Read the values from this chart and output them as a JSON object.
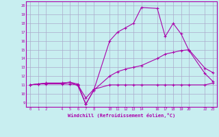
{
  "xlabel": "Windchill (Refroidissement éolien,°C)",
  "bg_color": "#c8eef0",
  "line_color": "#aa00aa",
  "grid_color": "#aaaacc",
  "xlim": [
    -0.5,
    23.5
  ],
  "ylim": [
    8.5,
    20.5
  ],
  "yticks": [
    9,
    10,
    11,
    12,
    13,
    14,
    15,
    16,
    17,
    18,
    19,
    20
  ],
  "xticks": [
    0,
    1,
    2,
    4,
    5,
    6,
    7,
    8,
    10,
    11,
    12,
    13,
    14,
    16,
    17,
    18,
    19,
    20,
    22,
    23
  ],
  "line1_x": [
    0,
    1,
    2,
    4,
    5,
    6,
    7,
    8,
    10,
    11,
    12,
    13,
    14,
    16,
    17,
    18,
    19,
    20,
    22,
    23
  ],
  "line1_y": [
    11.0,
    11.1,
    11.1,
    11.1,
    11.1,
    11.0,
    9.5,
    10.5,
    11.0,
    11.0,
    11.0,
    11.0,
    11.0,
    11.0,
    11.0,
    11.0,
    11.0,
    11.0,
    11.0,
    11.2
  ],
  "line2_x": [
    0,
    1,
    2,
    4,
    5,
    6,
    7,
    8,
    10,
    11,
    12,
    13,
    14,
    16,
    17,
    18,
    19,
    20,
    22,
    23
  ],
  "line2_y": [
    11.0,
    11.1,
    11.2,
    11.2,
    11.3,
    11.1,
    8.8,
    10.4,
    12.0,
    12.5,
    12.8,
    13.0,
    13.2,
    14.0,
    14.5,
    14.7,
    14.9,
    15.0,
    12.9,
    12.4
  ],
  "line3_x": [
    0,
    1,
    2,
    4,
    5,
    6,
    7,
    8,
    10,
    11,
    12,
    13,
    14,
    16,
    17,
    18,
    19,
    20,
    22,
    23
  ],
  "line3_y": [
    11.0,
    11.1,
    11.2,
    11.2,
    11.3,
    10.9,
    8.8,
    10.4,
    16.0,
    17.0,
    17.5,
    18.0,
    19.8,
    19.7,
    16.5,
    18.0,
    16.8,
    14.9,
    12.3,
    11.4
  ]
}
